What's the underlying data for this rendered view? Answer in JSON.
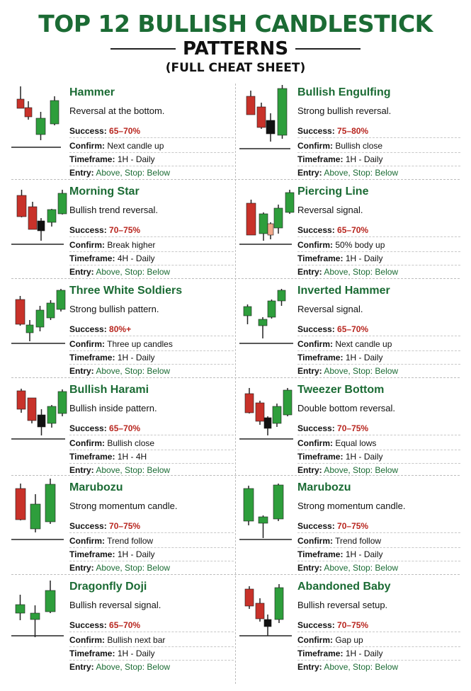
{
  "title": "TOP 12 BULLISH CANDLESTICK",
  "subtitle": "PATTERNS",
  "subsubtitle": "(FULL CHEAT SHEET)",
  "colors": {
    "green": "#1b6b34",
    "candle_green": "#2e9e3c",
    "candle_red": "#c8322a",
    "dark": "#111111",
    "red_text": "#b8261f"
  },
  "labels": {
    "success": "Success:",
    "confirm": "Confirm:",
    "timeframe": "Timeframe:",
    "entry": "Entry:"
  },
  "patterns": [
    {
      "name": "Hammer",
      "desc": "Reversal at the bottom.",
      "success": "65–70%",
      "confirm": "Next candle up",
      "timeframe": "1H - Daily",
      "entry": "Above, Stop: Below"
    },
    {
      "name": "Bullish Engulfing",
      "desc": "Strong bullish reversal.",
      "success": "75–80%",
      "confirm": "Bullish close",
      "timeframe": "1H - Daily",
      "entry": "Above, Stop: Below"
    },
    {
      "name": "Morning Star",
      "desc": "Bullish trend reversal.",
      "success": "70–75%",
      "confirm": "Break higher",
      "timeframe": "4H - Daily",
      "entry": "Above, Stop: Below"
    },
    {
      "name": "Piercing Line",
      "desc": "Reversal signal.",
      "success": "65–70%",
      "confirm": "50% body up",
      "timeframe": "1H - Daily",
      "entry": "Above, Stop: Below"
    },
    {
      "name": "Three White Soldiers",
      "desc": "Strong bullish pattern.",
      "success": "80%+",
      "confirm": "Three up candles",
      "timeframe": "1H - Daily",
      "entry": "Above, Stop: Below"
    },
    {
      "name": "Inverted Hammer",
      "desc": "Reversal signal.",
      "success": "65–70%",
      "confirm": "Next candle up",
      "timeframe": "1H - Daily",
      "entry": "Above, Stop: Below"
    },
    {
      "name": "Bullish Harami",
      "desc": "Bullish inside pattern.",
      "success": "65–70%",
      "confirm": "Bullish close",
      "timeframe": "1H - 4H",
      "entry": "Above, Stop: Below"
    },
    {
      "name": "Tweezer Bottom",
      "desc": "Double bottom reversal.",
      "success": "70–75%",
      "confirm": "Equal lows",
      "timeframe": "1H - Daily",
      "entry": "Above, Stop: Below"
    },
    {
      "name": "Marubozu",
      "desc": "Strong momentum candle.",
      "success": "70–75%",
      "confirm": "Trend follow",
      "timeframe": "1H - Daily",
      "entry": "Above, Stop: Below"
    },
    {
      "name": "Marubozu",
      "desc": "Strong momentum candle.",
      "success": "70–75%",
      "confirm": "Trend follow",
      "timeframe": "1H - Daily",
      "entry": "Above, Stop: Below"
    },
    {
      "name": "Dragonfly Doji",
      "desc": "Bullish reversal signal.",
      "success": "65–70%",
      "confirm": "Bullish next bar",
      "timeframe": "1H - Daily",
      "entry": "Above, Stop: Below"
    },
    {
      "name": "Abandoned Baby",
      "desc": "Bullish reversal setup.",
      "success": "70–75%",
      "confirm": "Gap up",
      "timeframe": "1H - Daily",
      "entry": "Above, Stop: Below"
    }
  ]
}
